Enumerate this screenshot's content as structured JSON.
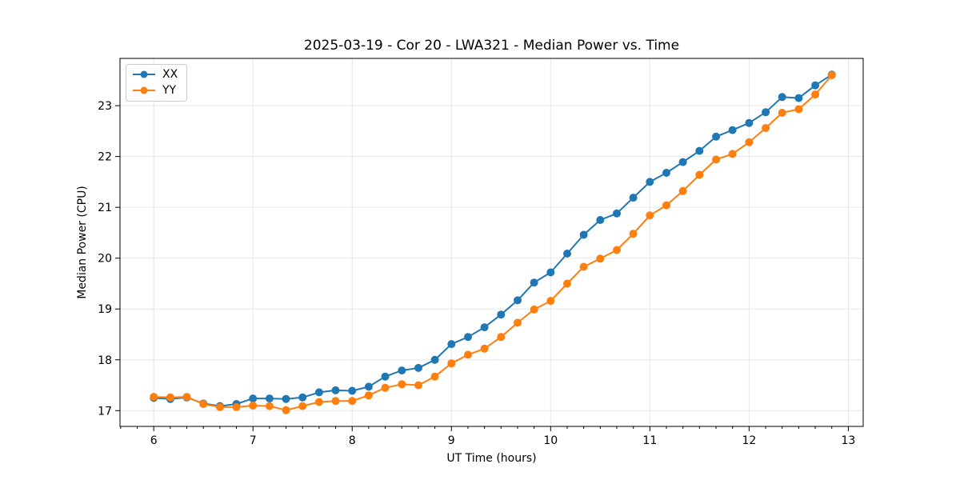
{
  "figure": {
    "title": "2025-03-19 - Cor 20 - LWA321 - Median Power vs. Time"
  },
  "chart_data": {
    "type": "line",
    "title": "2025-03-19 - Cor 20 - LWA321 - Median Power vs. Time",
    "xlabel": "UT Time (hours)",
    "ylabel": "Median Power (CPU)",
    "xlim": [
      5.66,
      13.15
    ],
    "ylim": [
      16.69,
      23.93
    ],
    "xticks": [
      6,
      7,
      8,
      9,
      10,
      11,
      12,
      13
    ],
    "yticks": [
      17,
      18,
      19,
      20,
      21,
      22,
      23
    ],
    "x_minor_tick_step_hours": 0.16667,
    "grid": true,
    "legend": {
      "position": "upper left",
      "entries": [
        "XX",
        "YY"
      ]
    },
    "x": [
      6.0,
      6.167,
      6.333,
      6.5,
      6.667,
      6.833,
      7.0,
      7.167,
      7.333,
      7.5,
      7.667,
      7.833,
      8.0,
      8.167,
      8.333,
      8.5,
      8.667,
      8.833,
      9.0,
      9.167,
      9.333,
      9.5,
      9.667,
      9.833,
      10.0,
      10.167,
      10.333,
      10.5,
      10.667,
      10.833,
      11.0,
      11.167,
      11.333,
      11.5,
      11.667,
      11.833,
      12.0,
      12.167,
      12.333,
      12.5,
      12.667,
      12.833
    ],
    "series": [
      {
        "name": "XX",
        "color": "#1f77b4",
        "marker": "circle",
        "values": [
          17.25,
          17.23,
          17.26,
          17.14,
          17.09,
          17.13,
          17.24,
          17.24,
          17.23,
          17.26,
          17.36,
          17.4,
          17.39,
          17.47,
          17.67,
          17.79,
          17.84,
          18.0,
          18.31,
          18.45,
          18.64,
          18.89,
          19.17,
          19.52,
          19.72,
          20.09,
          20.46,
          20.75,
          20.88,
          21.19,
          21.5,
          21.68,
          21.89,
          22.11,
          22.39,
          22.52,
          22.66,
          22.87,
          23.17,
          23.15,
          23.4,
          23.61
        ]
      },
      {
        "name": "YY",
        "color": "#ff7f0e",
        "marker": "circle",
        "values": [
          17.27,
          17.26,
          17.27,
          17.13,
          17.07,
          17.07,
          17.1,
          17.09,
          17.01,
          17.09,
          17.17,
          17.19,
          17.19,
          17.3,
          17.45,
          17.52,
          17.5,
          17.67,
          17.93,
          18.1,
          18.22,
          18.45,
          18.73,
          18.99,
          19.16,
          19.5,
          19.83,
          19.99,
          20.16,
          20.48,
          20.84,
          21.04,
          21.32,
          21.64,
          21.94,
          22.05,
          22.28,
          22.56,
          22.86,
          22.93,
          23.22,
          23.6
        ]
      }
    ]
  },
  "colors": {
    "grid": "#e6e6e6",
    "spine": "#000000",
    "text": "#000000",
    "background": "#ffffff"
  }
}
